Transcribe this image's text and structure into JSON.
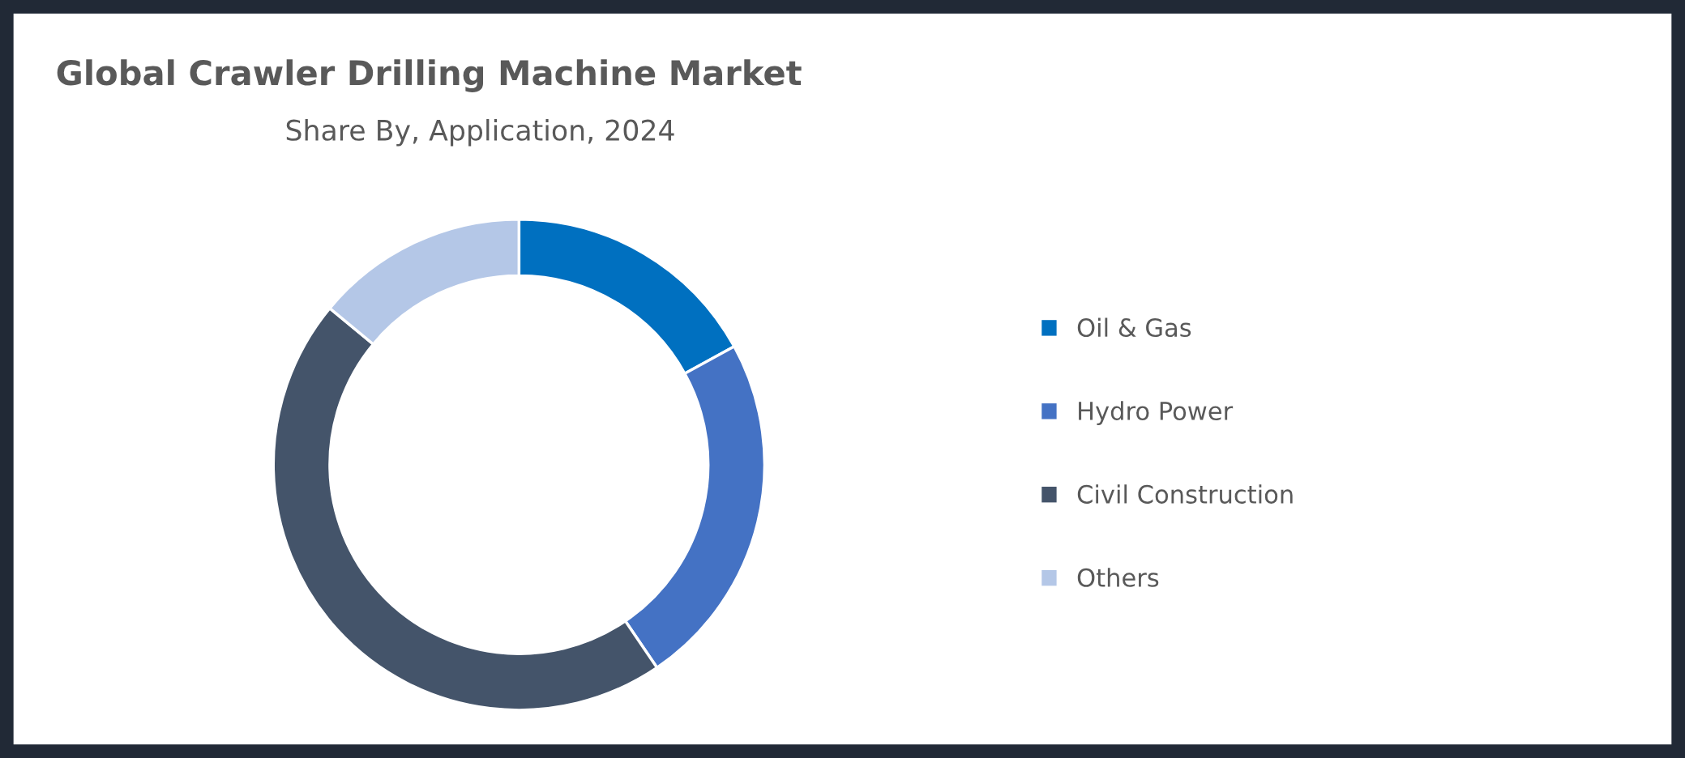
{
  "chart_data": {
    "type": "donut",
    "title": "Global Crawler Drilling Machine Market",
    "subtitle": "Share By, Application, 2024",
    "categories": [
      "Oil & Gas",
      "Hydro Power",
      "Civil Construction",
      "Others"
    ],
    "values": [
      17,
      23.5,
      45.5,
      14
    ],
    "colors": [
      "#0070c0",
      "#4472c4",
      "#44546a",
      "#b4c7e7"
    ],
    "legend": "right"
  }
}
